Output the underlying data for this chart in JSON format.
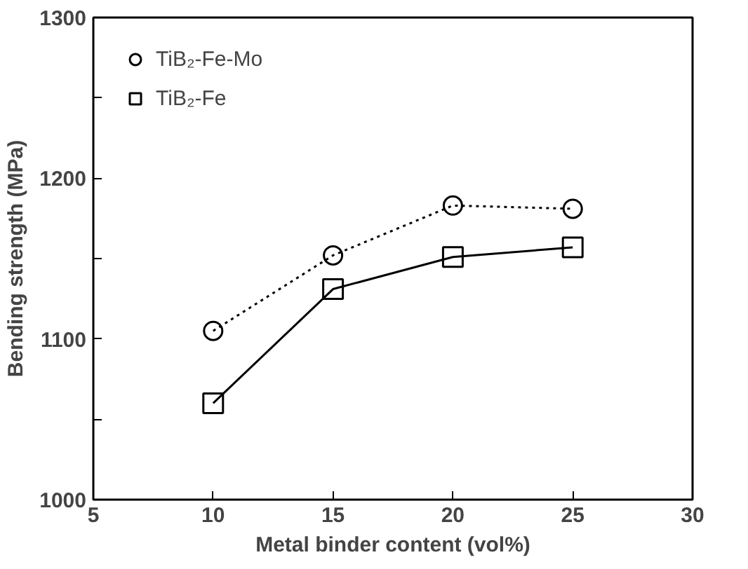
{
  "chart_data": {
    "type": "line",
    "xlabel": "Metal binder content (vol%)",
    "ylabel": "Bending strength (MPa)",
    "x": [
      10,
      15,
      20,
      25
    ],
    "series": [
      {
        "name": "TiB₂-Fe-Mo",
        "color": "#000000",
        "values": [
          1105,
          1152,
          1183,
          1181
        ],
        "marker": "circle",
        "line_style": "dotted"
      },
      {
        "name": "TiB₂-Fe",
        "color": "#000000",
        "values": [
          1060,
          1131,
          1151,
          1157
        ],
        "marker": "square",
        "line_style": "solid"
      }
    ],
    "xlim": [
      5,
      30
    ],
    "xticks": [
      5,
      10,
      15,
      20,
      25,
      30
    ],
    "ylim": [
      1000,
      1300
    ],
    "yticks": [
      1000,
      {
        "value": 1050,
        "label": null
      },
      1100,
      {
        "value": 1150,
        "label": null
      },
      1200,
      {
        "value": 1250,
        "label": null
      },
      1300
    ],
    "grid": false,
    "legend": "top left"
  }
}
